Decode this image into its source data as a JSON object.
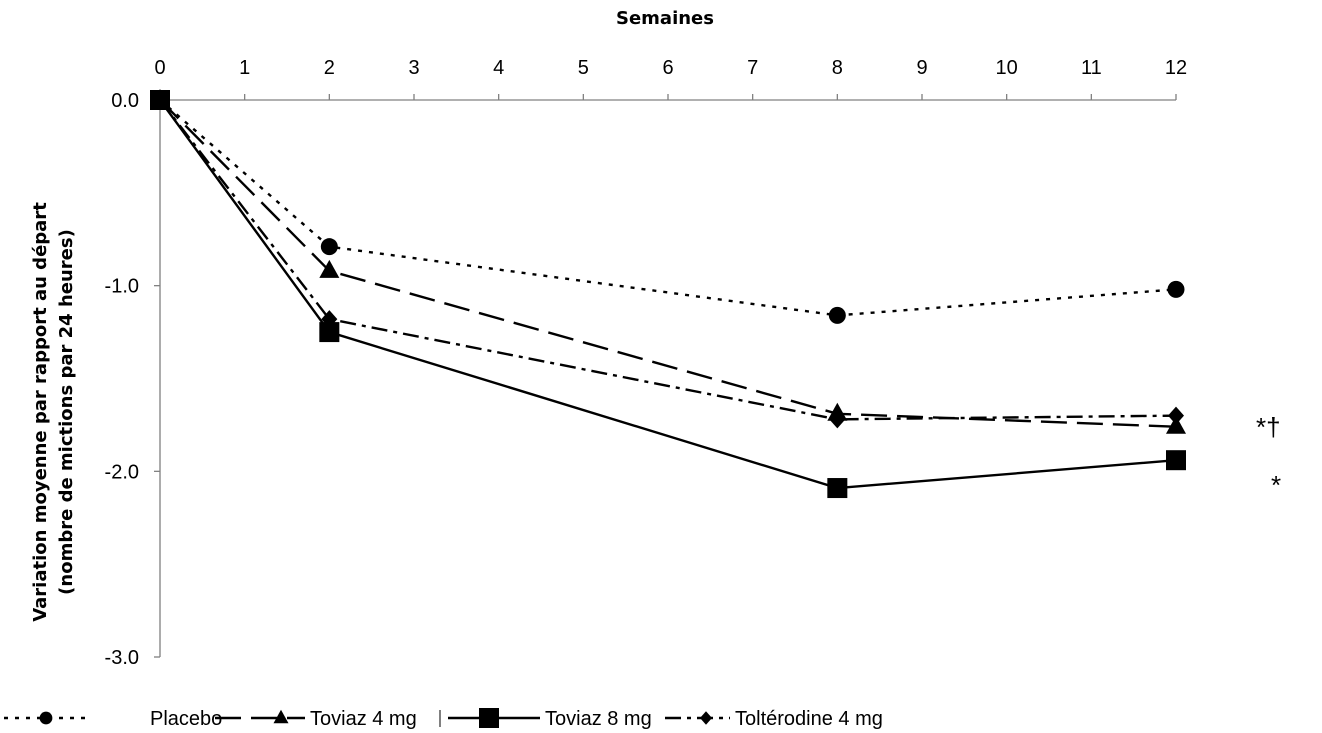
{
  "chart_data": {
    "type": "line",
    "title": "",
    "xlabel": "Semaines",
    "ylabel_line1": "Variation moyenne par rapport au départ",
    "ylabel_line2": "(nombre de mictions par 24 heures)",
    "xlim": [
      0,
      12
    ],
    "ylim": [
      -3.0,
      0.0
    ],
    "x_ticks": [
      0,
      1,
      2,
      3,
      4,
      5,
      6,
      7,
      8,
      9,
      10,
      11,
      12
    ],
    "y_ticks": [
      0.0,
      -1.0,
      -2.0,
      -3.0
    ],
    "y_tick_labels": [
      "0.0",
      "-1.0",
      "-2.0",
      "-3.0"
    ],
    "x_axis_position": "top",
    "grid": false,
    "legend_position": "bottom",
    "series": [
      {
        "name": "Placebo",
        "x": [
          0,
          2,
          8,
          12
        ],
        "y": [
          0.0,
          -0.79,
          -1.16,
          -1.02
        ],
        "marker": "circle",
        "dash": "dotted"
      },
      {
        "name": "Toviaz 4 mg",
        "x": [
          0,
          2,
          8,
          12
        ],
        "y": [
          0.0,
          -0.92,
          -1.69,
          -1.76
        ],
        "marker": "triangle",
        "dash": "long-dash"
      },
      {
        "name": "Toviaz 8 mg",
        "x": [
          0,
          2,
          8,
          12
        ],
        "y": [
          0.0,
          -1.25,
          -2.09,
          -1.94
        ],
        "marker": "square",
        "dash": "solid"
      },
      {
        "name": "Toltérodine 4 mg",
        "x": [
          0,
          2,
          8,
          12
        ],
        "y": [
          0.0,
          -1.18,
          -1.72,
          -1.7
        ],
        "marker": "diamond",
        "dash": "dash-dot"
      }
    ],
    "annotations": [
      "*†",
      "*"
    ]
  }
}
